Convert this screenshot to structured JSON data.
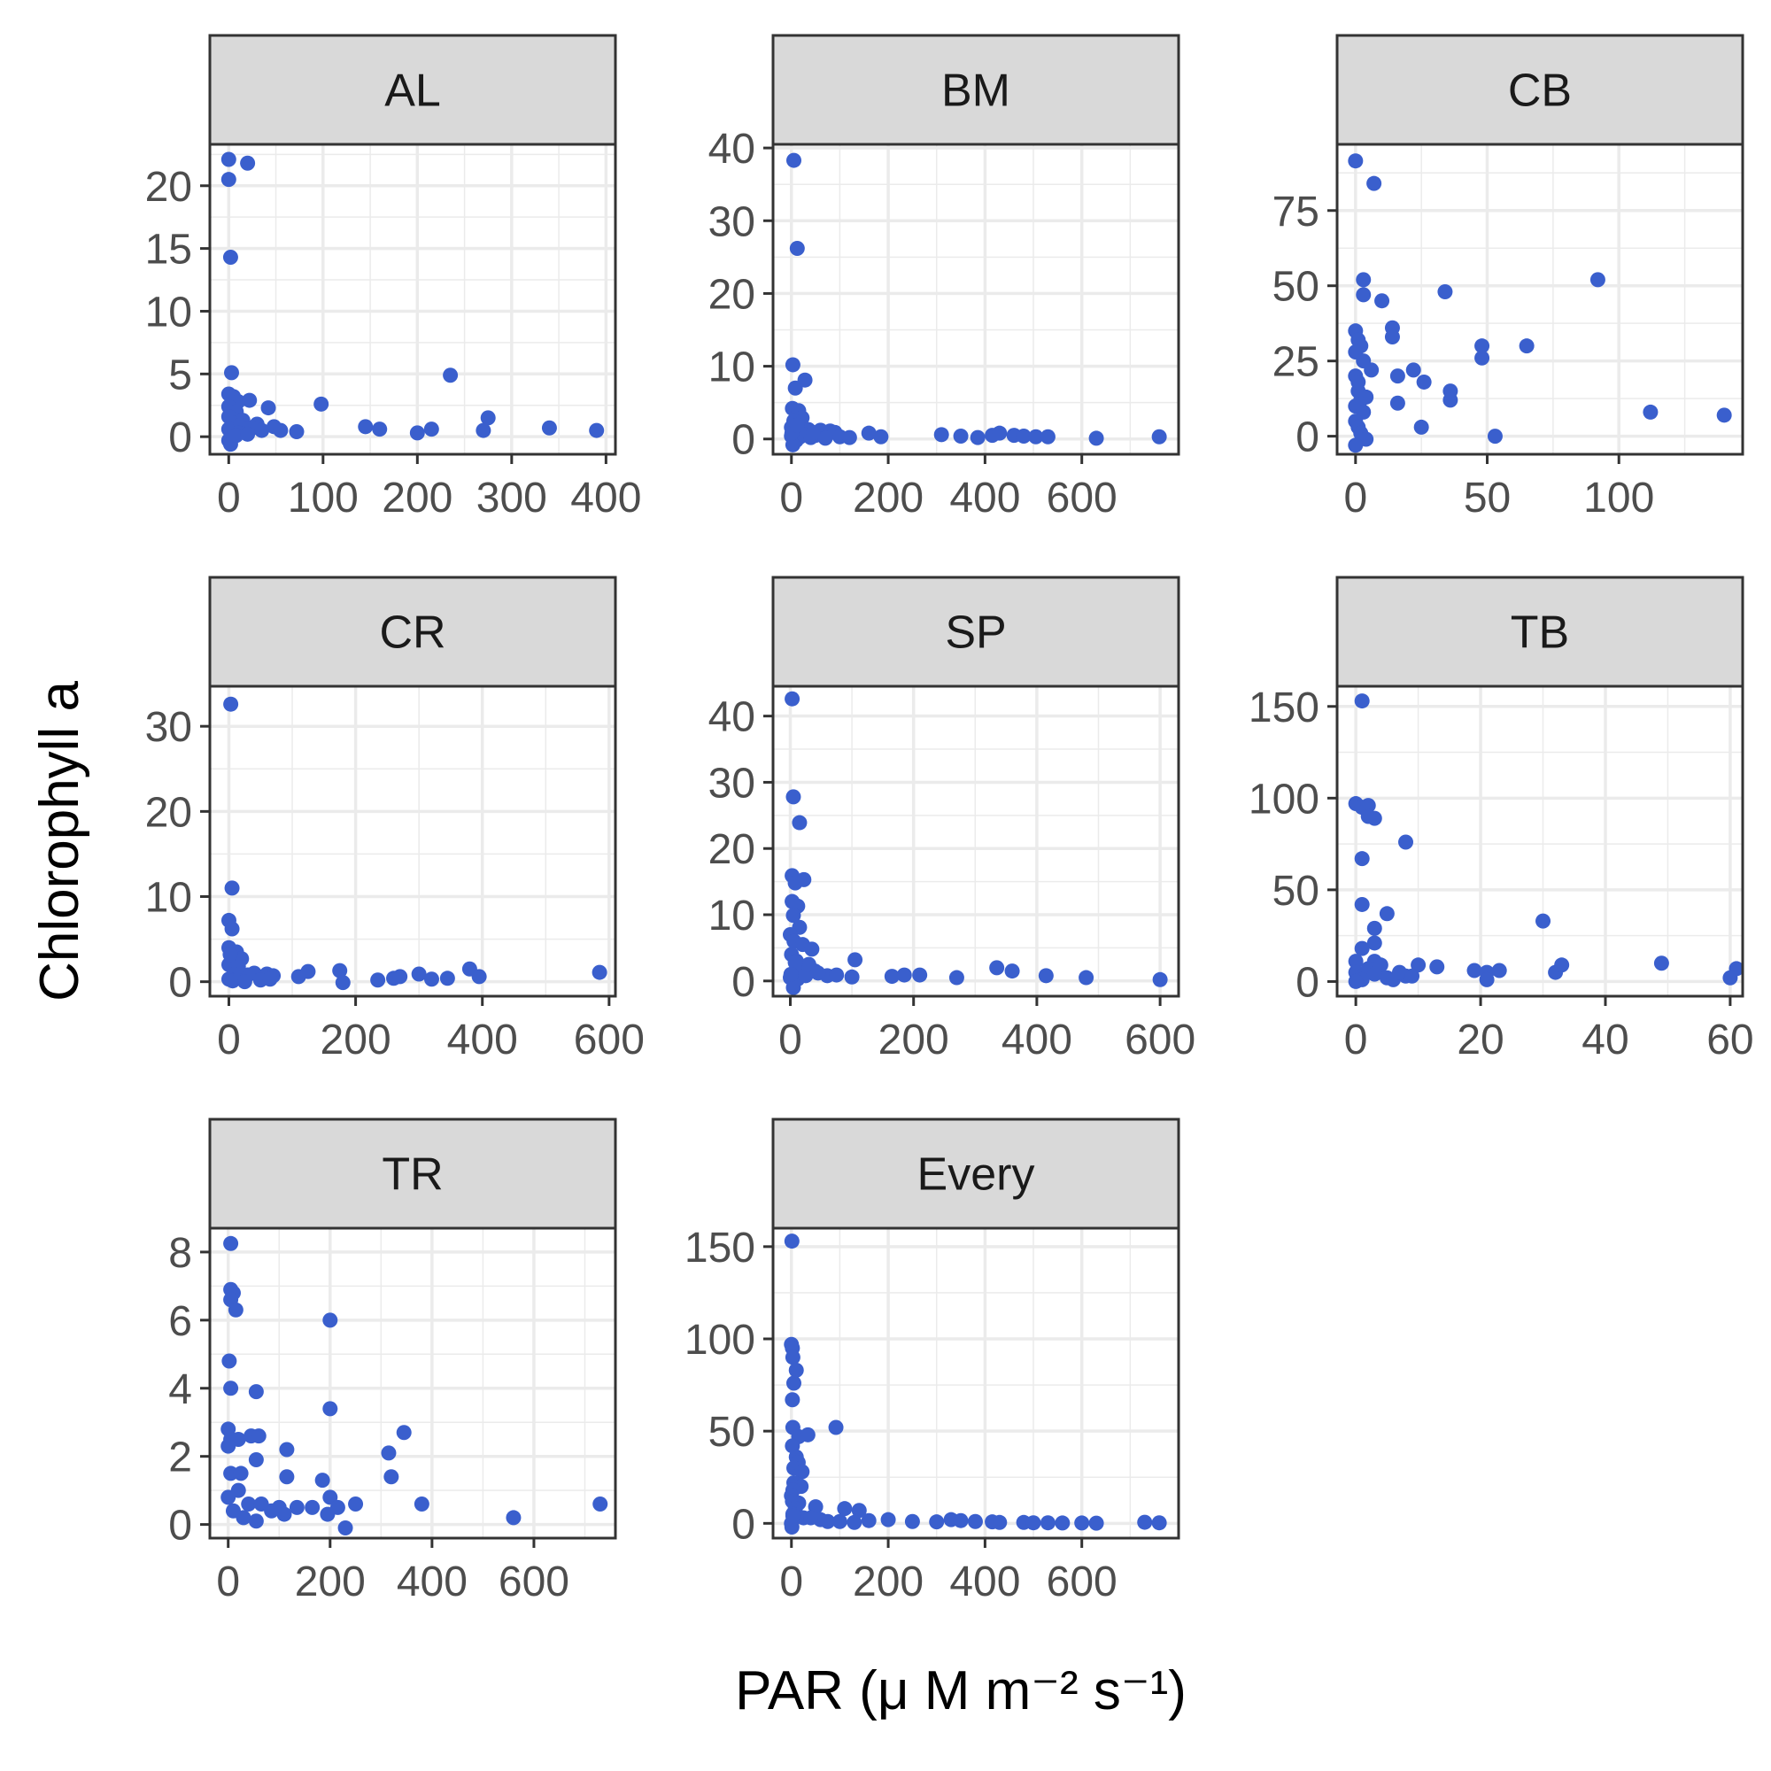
{
  "figure": {
    "xlabel": "PAR (μ M  m⁻² s⁻¹)",
    "ylabel": "Chlorophyll a",
    "point_color": "#3a5fcd",
    "strip_fill": "#d9d9d9",
    "grid_color": "#ebebeb",
    "panel_border": "#333333"
  },
  "chart_data": [
    {
      "type": "scatter",
      "title": "AL",
      "xlim": [
        -20,
        410
      ],
      "ylim": [
        -1.4,
        23.3
      ],
      "xticks": [
        0,
        100,
        200,
        300,
        400
      ],
      "yticks": [
        0,
        5,
        10,
        15,
        20
      ],
      "points": [
        [
          0,
          22.1
        ],
        [
          0,
          20.5
        ],
        [
          20,
          21.8
        ],
        [
          2,
          14.3
        ],
        [
          3,
          5.1
        ],
        [
          0,
          3.4
        ],
        [
          5,
          3.2
        ],
        [
          10,
          2.8
        ],
        [
          22,
          2.9
        ],
        [
          0,
          2.4
        ],
        [
          42,
          2.3
        ],
        [
          8,
          2.0
        ],
        [
          98,
          2.6
        ],
        [
          235,
          4.9
        ],
        [
          275,
          1.5
        ],
        [
          0,
          1.6
        ],
        [
          15,
          1.3
        ],
        [
          30,
          1.0
        ],
        [
          5,
          1.1
        ],
        [
          12,
          0.9
        ],
        [
          48,
          0.8
        ],
        [
          55,
          0.5
        ],
        [
          72,
          0.4
        ],
        [
          145,
          0.8
        ],
        [
          160,
          0.6
        ],
        [
          200,
          0.3
        ],
        [
          215,
          0.6
        ],
        [
          270,
          0.5
        ],
        [
          340,
          0.7
        ],
        [
          390,
          0.5
        ],
        [
          0,
          0.6
        ],
        [
          6,
          0.4
        ],
        [
          18,
          0.6
        ],
        [
          25,
          0.7
        ],
        [
          35,
          0.5
        ],
        [
          10,
          0.3
        ],
        [
          0,
          -0.3
        ],
        [
          2,
          -0.6
        ],
        [
          8,
          0.1
        ],
        [
          20,
          0.2
        ]
      ]
    },
    {
      "type": "scatter",
      "title": "BM",
      "xlim": [
        -38,
        800
      ],
      "ylim": [
        -2.1,
        40.5
      ],
      "xticks": [
        0,
        200,
        400,
        600
      ],
      "yticks": [
        0,
        10,
        20,
        30,
        40
      ],
      "points": [
        [
          5,
          38.3
        ],
        [
          12,
          26.2
        ],
        [
          3,
          10.2
        ],
        [
          8,
          7.0
        ],
        [
          28,
          8.1
        ],
        [
          2,
          4.2
        ],
        [
          15,
          3.9
        ],
        [
          22,
          2.9
        ],
        [
          5,
          2.5
        ],
        [
          0,
          1.6
        ],
        [
          35,
          1.3
        ],
        [
          60,
          1.2
        ],
        [
          80,
          1.1
        ],
        [
          90,
          0.9
        ],
        [
          160,
          0.8
        ],
        [
          185,
          0.3
        ],
        [
          310,
          0.6
        ],
        [
          350,
          0.4
        ],
        [
          385,
          0.2
        ],
        [
          415,
          0.5
        ],
        [
          430,
          0.8
        ],
        [
          460,
          0.5
        ],
        [
          480,
          0.4
        ],
        [
          505,
          0.3
        ],
        [
          530,
          0.3
        ],
        [
          630,
          0.1
        ],
        [
          760,
          0.3
        ],
        [
          0,
          0.4
        ],
        [
          10,
          -0.2
        ],
        [
          18,
          0.3
        ],
        [
          25,
          0.6
        ],
        [
          40,
          0.2
        ],
        [
          50,
          0.5
        ],
        [
          70,
          0.1
        ],
        [
          100,
          0.3
        ],
        [
          120,
          0.2
        ],
        [
          3,
          -0.8
        ],
        [
          1,
          0.8
        ],
        [
          12,
          1.9
        ],
        [
          45,
          0.9
        ]
      ]
    },
    {
      "type": "scatter",
      "title": "CB",
      "xlim": [
        -7,
        147
      ],
      "ylim": [
        -6,
        97
      ],
      "xticks": [
        0,
        50,
        100
      ],
      "yticks": [
        0,
        25,
        50,
        75
      ],
      "points": [
        [
          0,
          91.5
        ],
        [
          7,
          84
        ],
        [
          3,
          52
        ],
        [
          3,
          47
        ],
        [
          10,
          45
        ],
        [
          34,
          48
        ],
        [
          92,
          52
        ],
        [
          14,
          36
        ],
        [
          14,
          33
        ],
        [
          6,
          22
        ],
        [
          22,
          22
        ],
        [
          26,
          18
        ],
        [
          16,
          20
        ],
        [
          0,
          35
        ],
        [
          1,
          32
        ],
        [
          2,
          30
        ],
        [
          0,
          28
        ],
        [
          3,
          25
        ],
        [
          48,
          30
        ],
        [
          48,
          26
        ],
        [
          65,
          30
        ],
        [
          36,
          15
        ],
        [
          36,
          12
        ],
        [
          16,
          11
        ],
        [
          112,
          8
        ],
        [
          140,
          7
        ],
        [
          25,
          3
        ],
        [
          53,
          0
        ],
        [
          0,
          20
        ],
        [
          1,
          15
        ],
        [
          2,
          12
        ],
        [
          0,
          10
        ],
        [
          3,
          8
        ],
        [
          0,
          5
        ],
        [
          1,
          3
        ],
        [
          2,
          1
        ],
        [
          4,
          -1
        ],
        [
          0,
          -3
        ],
        [
          1,
          18
        ],
        [
          4,
          13
        ]
      ]
    },
    {
      "type": "scatter",
      "title": "CR",
      "xlim": [
        -30,
        610
      ],
      "ylim": [
        -1.7,
        34.7
      ],
      "xticks": [
        0,
        200,
        400,
        600
      ],
      "yticks": [
        0,
        10,
        20,
        30
      ],
      "points": [
        [
          3,
          32.6
        ],
        [
          5,
          11
        ],
        [
          0,
          7.2
        ],
        [
          5,
          6.2
        ],
        [
          0,
          4.0
        ],
        [
          12,
          3.5
        ],
        [
          20,
          2.7
        ],
        [
          0,
          2.0
        ],
        [
          10,
          1.5
        ],
        [
          40,
          1.0
        ],
        [
          60,
          0.9
        ],
        [
          70,
          0.7
        ],
        [
          110,
          0.6
        ],
        [
          125,
          1.2
        ],
        [
          175,
          1.3
        ],
        [
          180,
          -0.1
        ],
        [
          235,
          0.2
        ],
        [
          260,
          0.4
        ],
        [
          270,
          0.6
        ],
        [
          300,
          0.9
        ],
        [
          320,
          0.3
        ],
        [
          345,
          0.4
        ],
        [
          380,
          1.5
        ],
        [
          395,
          0.6
        ],
        [
          585,
          1.1
        ],
        [
          0,
          0.3
        ],
        [
          6,
          0.1
        ],
        [
          18,
          0.5
        ],
        [
          30,
          0.8
        ],
        [
          50,
          0.2
        ],
        [
          65,
          0.3
        ],
        [
          15,
          1.8
        ],
        [
          8,
          2.5
        ],
        [
          2,
          3.2
        ],
        [
          25,
          0.0
        ]
      ]
    },
    {
      "type": "scatter",
      "title": "SP",
      "xlim": [
        -28,
        630
      ],
      "ylim": [
        -2.3,
        44.5
      ],
      "xticks": [
        0,
        200,
        400,
        600
      ],
      "yticks": [
        0,
        10,
        20,
        30,
        40
      ],
      "points": [
        [
          3,
          42.6
        ],
        [
          5,
          27.8
        ],
        [
          15,
          23.9
        ],
        [
          3,
          15.9
        ],
        [
          8,
          14.8
        ],
        [
          22,
          15.3
        ],
        [
          3,
          12.0
        ],
        [
          12,
          11.3
        ],
        [
          5,
          9.9
        ],
        [
          15,
          8.1
        ],
        [
          0,
          7.0
        ],
        [
          6,
          6.0
        ],
        [
          20,
          5.5
        ],
        [
          35,
          4.8
        ],
        [
          2,
          4.0
        ],
        [
          10,
          3.0
        ],
        [
          28,
          2.3
        ],
        [
          40,
          1.5
        ],
        [
          60,
          0.8
        ],
        [
          75,
          0.9
        ],
        [
          105,
          3.2
        ],
        [
          100,
          0.6
        ],
        [
          165,
          0.7
        ],
        [
          185,
          0.9
        ],
        [
          210,
          0.9
        ],
        [
          270,
          0.5
        ],
        [
          335,
          2.0
        ],
        [
          360,
          1.5
        ],
        [
          415,
          0.8
        ],
        [
          480,
          0.5
        ],
        [
          600,
          0.2
        ],
        [
          0,
          0.5
        ],
        [
          5,
          -1.0
        ],
        [
          12,
          0.3
        ],
        [
          18,
          1.2
        ],
        [
          25,
          0.8
        ],
        [
          30,
          2.5
        ],
        [
          45,
          1.2
        ],
        [
          8,
          2.8
        ],
        [
          1,
          1.0
        ]
      ]
    },
    {
      "type": "scatter",
      "title": "TB",
      "xlim": [
        -3,
        62
      ],
      "ylim": [
        -8,
        161
      ],
      "xticks": [
        0,
        20,
        40,
        60
      ],
      "yticks": [
        0,
        50,
        100,
        150
      ],
      "points": [
        [
          1,
          153
        ],
        [
          0,
          97
        ],
        [
          1,
          95
        ],
        [
          2,
          96
        ],
        [
          2,
          90
        ],
        [
          3,
          89
        ],
        [
          1,
          67
        ],
        [
          8,
          76
        ],
        [
          1,
          42
        ],
        [
          5,
          37
        ],
        [
          3,
          29
        ],
        [
          3,
          21
        ],
        [
          1,
          18
        ],
        [
          30,
          33
        ],
        [
          0,
          11
        ],
        [
          3,
          11
        ],
        [
          10,
          9
        ],
        [
          13,
          8
        ],
        [
          19,
          6
        ],
        [
          21,
          5
        ],
        [
          23,
          6
        ],
        [
          32,
          5
        ],
        [
          33,
          9
        ],
        [
          49,
          10
        ],
        [
          61,
          7
        ],
        [
          60,
          2
        ],
        [
          21,
          1
        ],
        [
          0,
          5
        ],
        [
          1,
          3
        ],
        [
          2,
          7
        ],
        [
          4,
          9
        ],
        [
          5,
          2
        ],
        [
          6,
          1
        ],
        [
          8,
          3
        ],
        [
          1,
          1
        ],
        [
          0,
          0
        ],
        [
          3,
          4
        ],
        [
          7,
          5
        ],
        [
          9,
          3
        ]
      ]
    },
    {
      "type": "scatter",
      "title": "TR",
      "xlim": [
        -36,
        760
      ],
      "ylim": [
        -0.4,
        8.7
      ],
      "xticks": [
        0,
        200,
        400,
        600
      ],
      "yticks": [
        0,
        2,
        4,
        6,
        8
      ],
      "points": [
        [
          5,
          8.25
        ],
        [
          5,
          6.9
        ],
        [
          10,
          6.8
        ],
        [
          5,
          6.6
        ],
        [
          15,
          6.3
        ],
        [
          200,
          6.0
        ],
        [
          2,
          4.8
        ],
        [
          5,
          4.0
        ],
        [
          55,
          3.9
        ],
        [
          200,
          3.4
        ],
        [
          345,
          2.7
        ],
        [
          0,
          2.8
        ],
        [
          5,
          2.5
        ],
        [
          20,
          2.5
        ],
        [
          45,
          2.6
        ],
        [
          60,
          2.6
        ],
        [
          55,
          1.9
        ],
        [
          115,
          2.2
        ],
        [
          315,
          2.1
        ],
        [
          0,
          2.3
        ],
        [
          5,
          1.5
        ],
        [
          25,
          1.5
        ],
        [
          115,
          1.4
        ],
        [
          185,
          1.3
        ],
        [
          320,
          1.4
        ],
        [
          20,
          1.0
        ],
        [
          0,
          0.8
        ],
        [
          40,
          0.6
        ],
        [
          65,
          0.6
        ],
        [
          100,
          0.5
        ],
        [
          110,
          0.3
        ],
        [
          135,
          0.5
        ],
        [
          165,
          0.5
        ],
        [
          200,
          0.8
        ],
        [
          215,
          0.5
        ],
        [
          195,
          0.3
        ],
        [
          250,
          0.6
        ],
        [
          380,
          0.6
        ],
        [
          560,
          0.2
        ],
        [
          730,
          0.6
        ],
        [
          10,
          0.4
        ],
        [
          30,
          0.2
        ],
        [
          55,
          0.1
        ],
        [
          85,
          0.4
        ],
        [
          230,
          -0.1
        ]
      ]
    },
    {
      "type": "scatter",
      "title": "Every",
      "xlim": [
        -38,
        800
      ],
      "ylim": [
        -8,
        160
      ],
      "xticks": [
        0,
        200,
        400,
        600
      ],
      "yticks": [
        0,
        50,
        100,
        150
      ],
      "points": [
        [
          1,
          153
        ],
        [
          0,
          97
        ],
        [
          2,
          95
        ],
        [
          3,
          90
        ],
        [
          10,
          83
        ],
        [
          5,
          76
        ],
        [
          2,
          67
        ],
        [
          92,
          52
        ],
        [
          3,
          52
        ],
        [
          15,
          47
        ],
        [
          34,
          48
        ],
        [
          2,
          42
        ],
        [
          10,
          36
        ],
        [
          14,
          33
        ],
        [
          5,
          30
        ],
        [
          22,
          28
        ],
        [
          5,
          22
        ],
        [
          20,
          20
        ],
        [
          3,
          18
        ],
        [
          0,
          15
        ],
        [
          2,
          12
        ],
        [
          15,
          11
        ],
        [
          8,
          8
        ],
        [
          50,
          9
        ],
        [
          110,
          8
        ],
        [
          140,
          7
        ],
        [
          3,
          5
        ],
        [
          25,
          3
        ],
        [
          60,
          2
        ],
        [
          100,
          1
        ],
        [
          160,
          1.5
        ],
        [
          200,
          2
        ],
        [
          250,
          1
        ],
        [
          300,
          0.8
        ],
        [
          330,
          2
        ],
        [
          350,
          1.5
        ],
        [
          380,
          1
        ],
        [
          415,
          0.8
        ],
        [
          430,
          0.5
        ],
        [
          480,
          0.5
        ],
        [
          500,
          0.3
        ],
        [
          530,
          0.3
        ],
        [
          560,
          0.2
        ],
        [
          600,
          0.2
        ],
        [
          630,
          0.1
        ],
        [
          730,
          0.6
        ],
        [
          760,
          0.3
        ],
        [
          0,
          0
        ],
        [
          1,
          -2
        ],
        [
          3,
          4
        ],
        [
          40,
          3
        ],
        [
          75,
          1
        ],
        [
          130,
          0.5
        ]
      ]
    }
  ]
}
